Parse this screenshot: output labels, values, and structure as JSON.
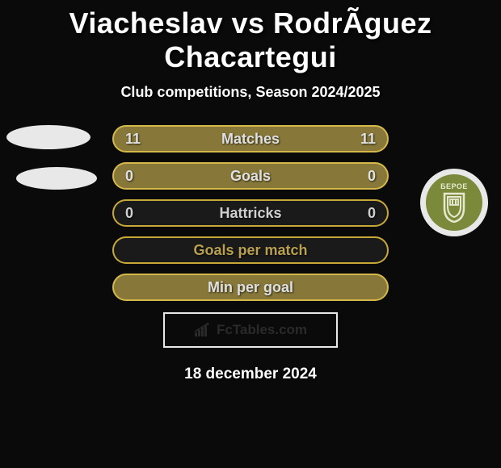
{
  "title": "Viacheslav vs RodrÃ­guez Chacartegui",
  "subtitle": "Club competitions, Season 2024/2025",
  "date": "18 december 2024",
  "footer_brand": "FcTables.com",
  "badge_text": "БЕРОЕ",
  "colors": {
    "bg": "#0a0a0a",
    "text": "#ffffff",
    "blob": "#e8e8e8",
    "badge_fill": "#7a8a3a",
    "badge_text": "#e8e8d0"
  },
  "rows": [
    {
      "label": "Matches",
      "left": "11",
      "right": "11",
      "bg": "#87783a",
      "border": "#d4b84a",
      "text": "#e0e0e0"
    },
    {
      "label": "Goals",
      "left": "0",
      "right": "0",
      "bg": "#87783a",
      "border": "#d4b84a",
      "text": "#e0e0e0"
    },
    {
      "label": "Hattricks",
      "left": "0",
      "right": "0",
      "bg": "#1a1a1a",
      "border": "#c8a838",
      "text": "#cfcfcf"
    },
    {
      "label": "Goals per match",
      "left": "",
      "right": "",
      "bg": "#1a1a1a",
      "border": "#c8a838",
      "text": "#b8a050"
    },
    {
      "label": "Min per goal",
      "left": "",
      "right": "",
      "bg": "#87783a",
      "border": "#d4b84a",
      "text": "#e0e0e0"
    }
  ]
}
